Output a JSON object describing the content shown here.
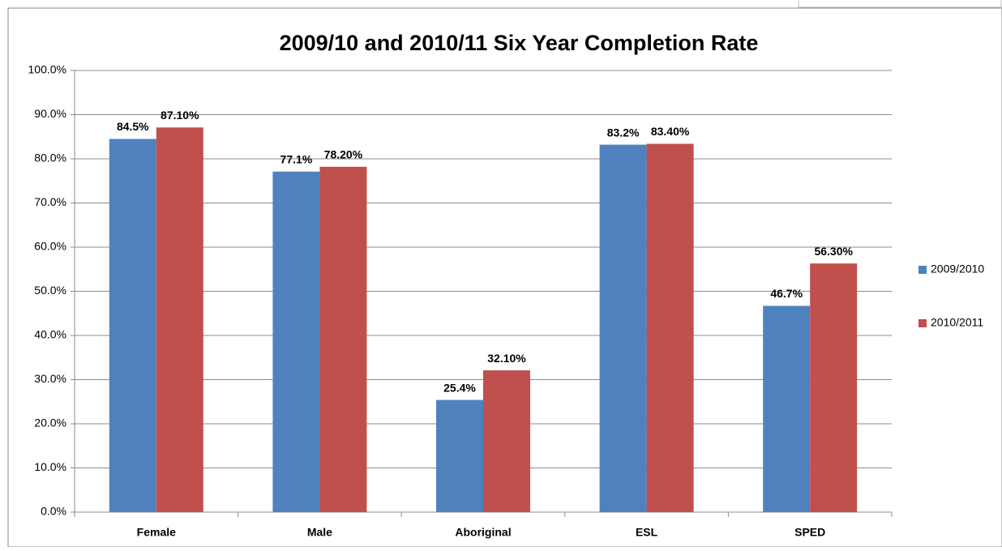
{
  "chart_data": {
    "type": "bar",
    "title": "2009/10 and 2010/11 Six Year Completion Rate",
    "categories": [
      "Female",
      "Male",
      "Aboriginal",
      "ESL",
      "SPED"
    ],
    "series": [
      {
        "name": "2009/2010",
        "color": "#4f81bd",
        "values": [
          84.5,
          77.1,
          25.4,
          83.2,
          46.7
        ],
        "value_labels": [
          "84.5%",
          "77.1%",
          "25.4%",
          "83.2%",
          "46.7%"
        ]
      },
      {
        "name": "2010/2011",
        "color": "#c0504d",
        "values": [
          87.1,
          78.2,
          32.1,
          83.4,
          56.3
        ],
        "value_labels": [
          "87.10%",
          "78.20%",
          "32.10%",
          "83.40%",
          "56.30%"
        ]
      }
    ],
    "ylim": [
      0,
      100
    ],
    "yticks": [
      {
        "value": 0,
        "label": "0.0%"
      },
      {
        "value": 10,
        "label": "10.0%"
      },
      {
        "value": 20,
        "label": "20.0%"
      },
      {
        "value": 30,
        "label": "30.0%"
      },
      {
        "value": 40,
        "label": "40.0%"
      },
      {
        "value": 50,
        "label": "50.0%"
      },
      {
        "value": 60,
        "label": "60.0%"
      },
      {
        "value": 70,
        "label": "70.0%"
      },
      {
        "value": 80,
        "label": "80.0%"
      },
      {
        "value": 90,
        "label": "90.0%"
      },
      {
        "value": 100,
        "label": "100.0%"
      }
    ],
    "grid": true,
    "legend": "right"
  }
}
